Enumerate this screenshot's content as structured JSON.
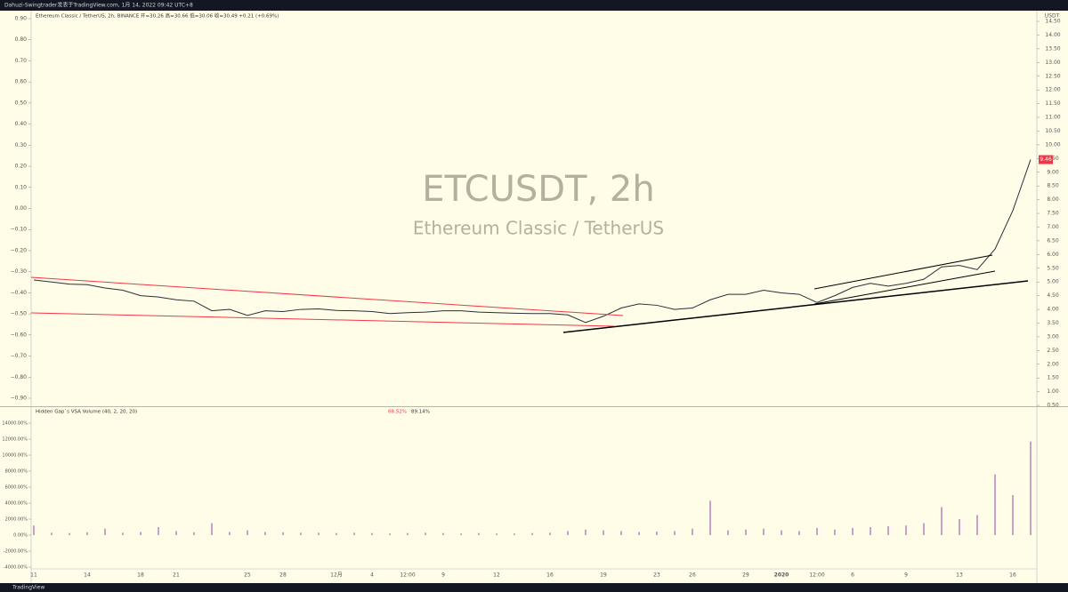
{
  "header": {
    "author_line": "Dahuzi-Swingtrader发表于TradingView.com,  1月 14, 2022 09:42 UTC+8"
  },
  "footer": {
    "brand": "TradingView"
  },
  "chart_data": [
    {
      "type": "line",
      "title": "ETCUSDT, 2h",
      "subtitle": "Ethereum Classic / TetherUS",
      "symbol_info": "Ethereum Classic / TetherUS, 2h, BINANCE  开=30.26  高=30.66  低=30.06  收=30.49  +0.21 (+0.69%)",
      "y_label": "USDT",
      "categories": [
        "11",
        null,
        null,
        "14",
        null,
        null,
        "18",
        null,
        "21",
        null,
        null,
        null,
        "25",
        null,
        "28",
        null,
        null,
        "12月",
        null,
        "4",
        null,
        "12:00",
        null,
        "9",
        null,
        null,
        "12",
        null,
        null,
        "16",
        null,
        null,
        "19",
        null,
        null,
        "23",
        null,
        "26",
        null,
        null,
        "29",
        null,
        "2020",
        null,
        "12:00",
        null,
        "6",
        null,
        null,
        "9",
        null,
        null,
        "13",
        null,
        null,
        "16",
        null
      ],
      "series": [
        {
          "name": "ETCUSDT",
          "color": "#2a2e39",
          "values": [
            5.07,
            5.0,
            4.92,
            4.9,
            4.78,
            4.7,
            4.5,
            4.45,
            4.35,
            4.3,
            3.95,
            4.0,
            3.78,
            3.95,
            3.92,
            4.0,
            4.02,
            3.96,
            3.95,
            3.92,
            3.85,
            3.88,
            3.9,
            3.95,
            3.95,
            3.9,
            3.88,
            3.86,
            3.85,
            3.85,
            3.8,
            3.52,
            3.75,
            4.05,
            4.2,
            4.15,
            4.0,
            4.05,
            4.35,
            4.55,
            4.55,
            4.7,
            4.6,
            4.55,
            4.25,
            4.5,
            4.8,
            4.95,
            4.85,
            4.95,
            5.1,
            5.55,
            5.6,
            5.45,
            6.2,
            7.6,
            9.46
          ]
        }
      ],
      "last_price_color": "#f23645",
      "ylim": [
        0.47,
        14.89
      ],
      "yticks": [
        {
          "value": 0.5,
          "label": "0.50"
        },
        {
          "value": 1,
          "label": "1.00"
        },
        {
          "value": 1.5,
          "label": "1.50"
        },
        {
          "value": 2,
          "label": "2.00"
        },
        {
          "value": 2.5,
          "label": "2.50"
        },
        {
          "value": 3,
          "label": "3.00"
        },
        {
          "value": 3.5,
          "label": "3.50"
        },
        {
          "value": 4,
          "label": "4.00"
        },
        {
          "value": 4.5,
          "label": "4.50"
        },
        {
          "value": 5,
          "label": "5.00"
        },
        {
          "value": 5.5,
          "label": "5.50"
        },
        {
          "value": 6,
          "label": "6.00"
        },
        {
          "value": 6.5,
          "label": "6.50"
        },
        {
          "value": 7,
          "label": "7.00"
        },
        {
          "value": 7.5,
          "label": "7.50"
        },
        {
          "value": 8,
          "label": "8.00"
        },
        {
          "value": 8.5,
          "label": "8.50"
        },
        {
          "value": 9,
          "label": "9.00"
        },
        {
          "value": 9.5,
          "label": "9.50"
        },
        {
          "value": 10,
          "label": "10.00"
        },
        {
          "value": 10.5,
          "label": "10.50"
        },
        {
          "value": 11,
          "label": "11.00"
        },
        {
          "value": 11.5,
          "label": "11.50"
        },
        {
          "value": 12,
          "label": "12.00"
        },
        {
          "value": 12.5,
          "label": "12.50"
        },
        {
          "value": 13,
          "label": "13.00"
        },
        {
          "value": 13.5,
          "label": "13.50"
        },
        {
          "value": 14,
          "label": "14.00"
        },
        {
          "value": 14.5,
          "label": "14.50"
        }
      ],
      "y2lim": [
        -0.938,
        0.938
      ],
      "y2ticks": [
        {
          "value": 0.9,
          "label": "0.90"
        },
        {
          "value": 0.8,
          "label": "0.80"
        },
        {
          "value": 0.7,
          "label": "0.70"
        },
        {
          "value": 0.6,
          "label": "0.60"
        },
        {
          "value": 0.5,
          "label": "0.50"
        },
        {
          "value": 0.4,
          "label": "0.40"
        },
        {
          "value": 0.3,
          "label": "0.30"
        },
        {
          "value": 0.2,
          "label": "0.20"
        },
        {
          "value": 0.1,
          "label": "0.10"
        },
        {
          "value": 0,
          "label": "0.00"
        },
        {
          "value": -0.1,
          "label": "−0.10"
        },
        {
          "value": -0.2,
          "label": "−0.20"
        },
        {
          "value": -0.3,
          "label": "−0.30"
        },
        {
          "value": -0.4,
          "label": "−0.40"
        },
        {
          "value": -0.5,
          "label": "−0.50"
        },
        {
          "value": -0.6,
          "label": "−0.60"
        },
        {
          "value": -0.7,
          "label": "−0.70"
        },
        {
          "value": -0.8,
          "label": "−0.80"
        },
        {
          "value": -0.9,
          "label": "−0.90"
        }
      ]
    },
    {
      "type": "bar",
      "title": "Hidden Gap`s VSA Volume (40, 2, 20, 20)",
      "readouts": [
        {
          "text": "68.52%",
          "color": "#f23645"
        },
        {
          "text": "89.14%",
          "color": "#333333"
        }
      ],
      "series": [
        {
          "name": "Volume",
          "color": "#c9a0c8",
          "values": [
            1200,
            300,
            250,
            350,
            800,
            300,
            400,
            1000,
            500,
            350,
            1500,
            400,
            600,
            400,
            350,
            300,
            300,
            250,
            300,
            250,
            200,
            250,
            300,
            250,
            200,
            250,
            200,
            200,
            250,
            300,
            500,
            700,
            600,
            500,
            400,
            450,
            500,
            800,
            4300,
            600,
            700,
            800,
            600,
            500,
            900,
            700,
            900,
            1000,
            1100,
            1200,
            1500,
            3500,
            2000,
            2500,
            7600,
            5000,
            11700
          ]
        }
      ],
      "ylim": [
        -4222,
        16000
      ],
      "yticks": [
        {
          "value": 14000,
          "label": "14000.00%"
        },
        {
          "value": 12000,
          "label": "12000.00%"
        },
        {
          "value": 10000,
          "label": "10000.00%"
        },
        {
          "value": 8000,
          "label": "8000.00%"
        },
        {
          "value": 6000,
          "label": "6000.00%"
        },
        {
          "value": 4000,
          "label": "4000.00%"
        },
        {
          "value": 2000,
          "label": "2000.00%"
        },
        {
          "value": 0,
          "label": "0.00%"
        },
        {
          "value": -2000,
          "label": "-2000.00%"
        },
        {
          "value": -4000,
          "label": "-4000.00%"
        }
      ]
    }
  ]
}
